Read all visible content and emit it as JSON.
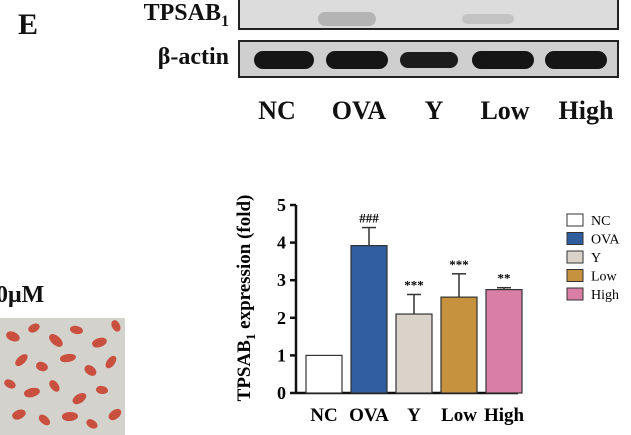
{
  "panel_letter": "E",
  "blot": {
    "rows": [
      {
        "label_main": "TPSAB",
        "label_sub": "1"
      },
      {
        "label_main": "β-actin",
        "label_sub": ""
      }
    ],
    "lanes": [
      "NC",
      "OVA",
      "Y",
      "Low",
      "High"
    ]
  },
  "micrograph": {
    "label": "0μM"
  },
  "chart_data": {
    "type": "bar",
    "categories": [
      "NC",
      "OVA",
      "Y",
      "Low",
      "High"
    ],
    "values": [
      1.0,
      3.92,
      2.1,
      2.55,
      2.75
    ],
    "errors": [
      0,
      0.48,
      0.52,
      0.62,
      0.05
    ],
    "significance": [
      "",
      "###",
      "***",
      "***",
      "**"
    ],
    "ylabel_main": "TPSAB",
    "ylabel_sub": "1",
    "ylabel_rest": " expression (fold)",
    "ylim": [
      0,
      5
    ],
    "yticks": [
      "0",
      "1",
      "2",
      "3",
      "4",
      "5"
    ],
    "legend": [
      "NC",
      "OVA",
      "Y",
      "Low",
      "High"
    ],
    "legend_position": "right",
    "colors": [
      "#ffffff",
      "#2f5d9e",
      "#d9d3ca",
      "#c7923e",
      "#d97fa6"
    ]
  }
}
